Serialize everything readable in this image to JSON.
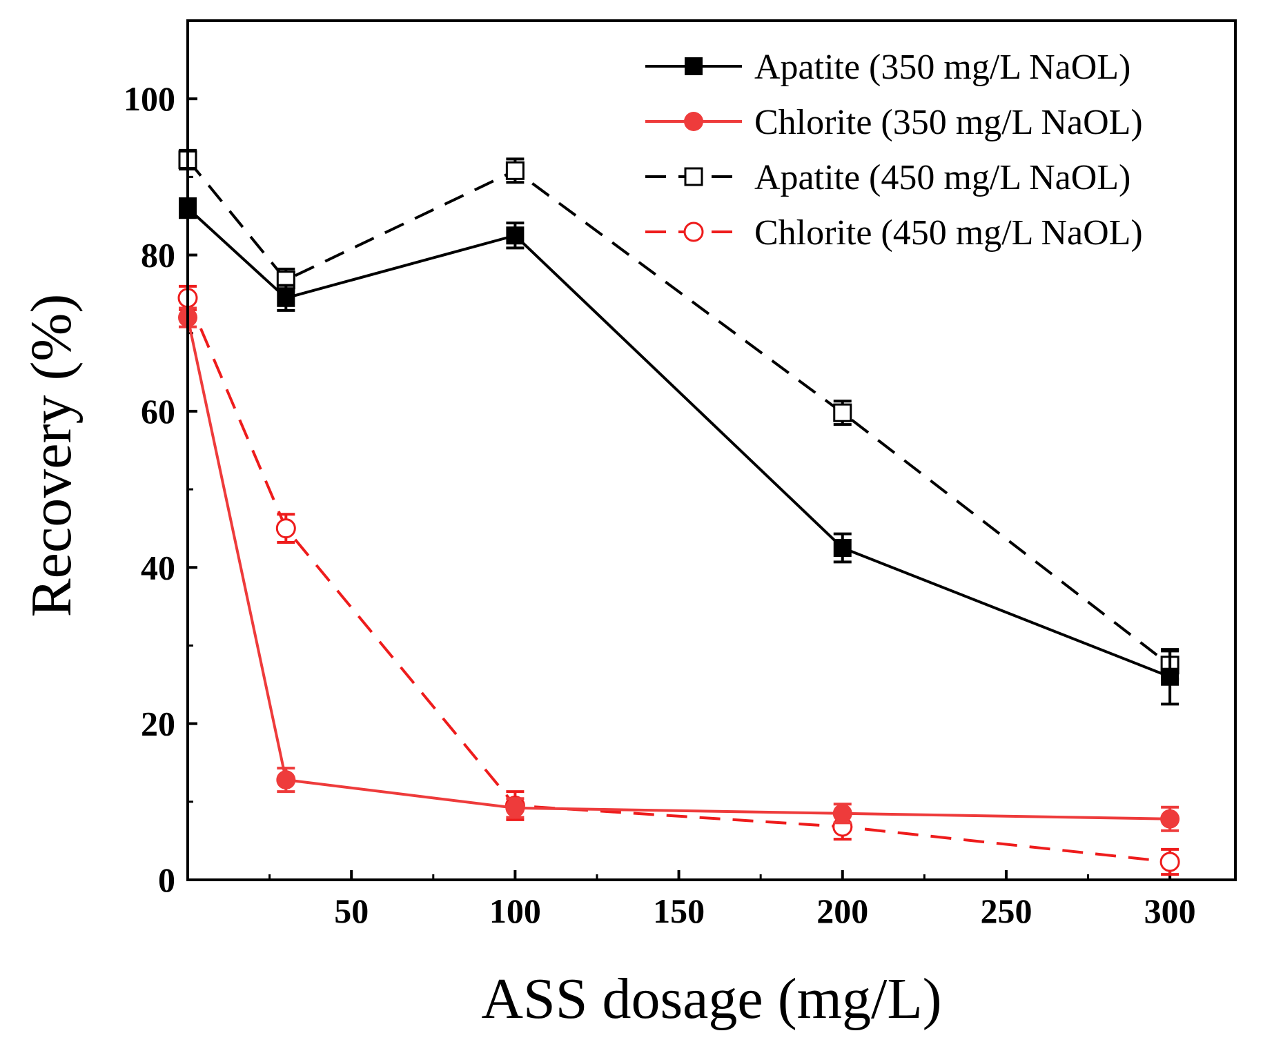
{
  "chart_data": {
    "type": "line",
    "title": "",
    "xlabel": "ASS dosage (mg/L)",
    "ylabel": "Recovery (%)",
    "xlim": [
      0,
      320
    ],
    "ylim": [
      0,
      110
    ],
    "xticks": [
      50,
      100,
      150,
      200,
      250,
      300
    ],
    "yticks": [
      0,
      20,
      40,
      60,
      80,
      100
    ],
    "grid": false,
    "legend_position": "top-right",
    "x": [
      0,
      30,
      100,
      200,
      300
    ],
    "series": [
      {
        "name": "Apatite (350 mg/L NaOL)",
        "color": "#000000",
        "line_style": "solid",
        "marker": "filled-square",
        "values": [
          86,
          74.5,
          82.5,
          42.5,
          26
        ],
        "errors": [
          1.2,
          1.6,
          1.6,
          1.8,
          3.5
        ]
      },
      {
        "name": "Chlorite (350 mg/L NaOL)",
        "color": "#ee3b3b",
        "line_style": "solid",
        "marker": "filled-circle",
        "values": [
          72,
          12.8,
          9.2,
          8.5,
          7.8
        ],
        "errors": [
          1.2,
          1.5,
          1.2,
          1.2,
          1.5
        ]
      },
      {
        "name": "Apatite (450 mg/L NaOL)",
        "color": "#000000",
        "line_style": "dashed",
        "marker": "open-square",
        "values": [
          92.2,
          76.8,
          90.8,
          59.8,
          27.5
        ],
        "errors": [
          1.2,
          1.4,
          1.5,
          1.5,
          1.8
        ]
      },
      {
        "name": "Chlorite (450 mg/L NaOL)",
        "color": "#ee1c1c",
        "line_style": "dashed",
        "marker": "open-circle",
        "values": [
          74.5,
          45,
          9.5,
          6.8,
          2.3
        ],
        "errors": [
          1.5,
          1.8,
          1.8,
          1.6,
          1.6
        ]
      }
    ]
  }
}
